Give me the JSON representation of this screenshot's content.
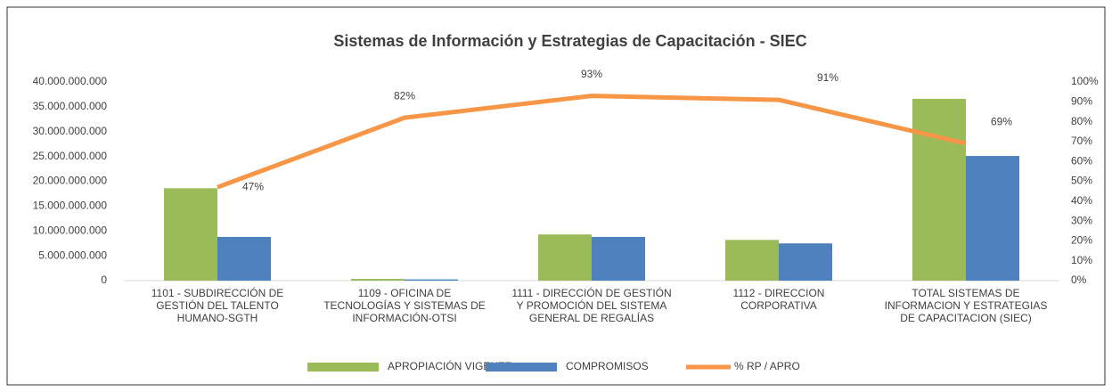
{
  "chart_data": {
    "type": "bar_line",
    "title": "Sistemas de Información y Estrategias de Capacitación - SIEC",
    "categories": [
      "1101 - SUBDIRECCIÓN DE GESTIÓN DEL TALENTO HUMANO-SGTH",
      "1109 - OFICINA DE TECNOLOGÍAS Y SISTEMAS DE INFORMACIÓN-OTSI",
      "1111 - DIRECCIÓN DE GESTIÓN Y PROMOCIÓN DEL SISTEMA GENERAL DE REGALÍAS",
      "1112 - DIRECCION CORPORATIVA",
      "TOTAL SISTEMAS DE INFORMACION Y ESTRATEGIAS DE CAPACITACION (SIEC)"
    ],
    "series": [
      {
        "name": "APROPIACIÓN VIGENTE",
        "color": "#9bbb59",
        "type": "bar",
        "values": [
          18600000000,
          350000000,
          9300000000,
          8200000000,
          36600000000
        ]
      },
      {
        "name": "COMPROMISOS",
        "color": "#4f81bd",
        "type": "bar",
        "values": [
          8800000000,
          250000000,
          8800000000,
          7500000000,
          25100000000
        ]
      },
      {
        "name": "% RP / APRO",
        "color": "#f79646",
        "type": "line",
        "axis": "y2",
        "values": [
          47,
          82,
          93,
          91,
          69
        ],
        "value_labels": [
          "47%",
          "82%",
          "93%",
          "91%",
          "69%"
        ]
      }
    ],
    "ylim": [
      0,
      40000000000
    ],
    "yticks": [
      0,
      {
        "value": 5000000000,
        "label": "5.000.000.000"
      },
      {
        "value": 10000000000,
        "label": "10.000.000.000"
      },
      {
        "value": 15000000000,
        "label": "15.000.000.000"
      },
      {
        "value": 20000000000,
        "label": "20.000.000.000"
      },
      {
        "value": 25000000000,
        "label": "25.000.000.000"
      },
      {
        "value": 30000000000,
        "label": "30.000.000.000"
      },
      {
        "value": 35000000000,
        "label": "35.000.000.000"
      },
      {
        "value": 40000000000,
        "label": "40.000.000.000"
      }
    ],
    "y2lim": [
      0,
      100
    ],
    "y2ticks": [
      {
        "value": 0,
        "label": "0%"
      },
      {
        "value": 10,
        "label": "10%"
      },
      {
        "value": 20,
        "label": "20%"
      },
      {
        "value": 30,
        "label": "30%"
      },
      {
        "value": 40,
        "label": "40%"
      },
      {
        "value": 50,
        "label": "50%"
      },
      {
        "value": 60,
        "label": "60%"
      },
      {
        "value": 70,
        "label": "70%"
      },
      {
        "value": 80,
        "label": "80%"
      },
      {
        "value": 90,
        "label": "90%"
      },
      {
        "value": 100,
        "label": "100%"
      }
    ],
    "legend": "bottom"
  }
}
